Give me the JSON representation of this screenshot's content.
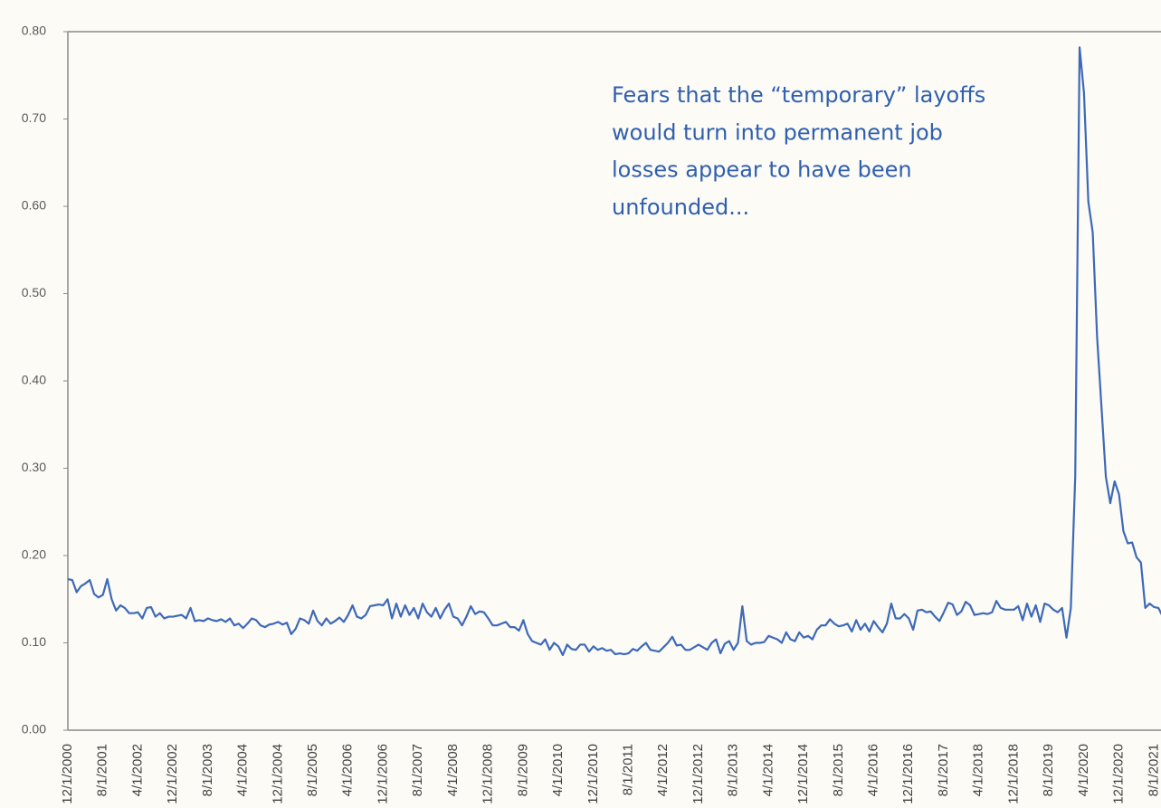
{
  "chart_data": {
    "type": "line",
    "annotation": [
      "Fears that the “temporary” layoffs",
      "would turn into permanent job",
      "losses appear to have been",
      "unfounded..."
    ],
    "categories": [
      "12/1/2000",
      null,
      null,
      null,
      null,
      null,
      null,
      null,
      "8/1/2001",
      null,
      null,
      null,
      null,
      null,
      null,
      null,
      "4/1/2002",
      null,
      null,
      null,
      null,
      null,
      null,
      null,
      "12/1/2002",
      null,
      null,
      null,
      null,
      null,
      null,
      null,
      "8/1/2003",
      null,
      null,
      null,
      null,
      null,
      null,
      null,
      "4/1/2004",
      null,
      null,
      null,
      null,
      null,
      null,
      null,
      "12/1/2004",
      null,
      null,
      null,
      null,
      null,
      null,
      null,
      "8/1/2005",
      null,
      null,
      null,
      null,
      null,
      null,
      null,
      "4/1/2006",
      null,
      null,
      null,
      null,
      null,
      null,
      null,
      "12/1/2006",
      null,
      null,
      null,
      null,
      null,
      null,
      null,
      "8/1/2007",
      null,
      null,
      null,
      null,
      null,
      null,
      null,
      "4/1/2008",
      null,
      null,
      null,
      null,
      null,
      null,
      null,
      "12/1/2008",
      null,
      null,
      null,
      null,
      null,
      null,
      null,
      "8/1/2009",
      null,
      null,
      null,
      null,
      null,
      null,
      null,
      "4/1/2010",
      null,
      null,
      null,
      null,
      null,
      null,
      null,
      "12/1/2010",
      null,
      null,
      null,
      null,
      null,
      null,
      null,
      "8/1/2011",
      null,
      null,
      null,
      null,
      null,
      null,
      null,
      "4/1/2012",
      null,
      null,
      null,
      null,
      null,
      null,
      null,
      "12/1/2012",
      null,
      null,
      null,
      null,
      null,
      null,
      null,
      "8/1/2013",
      null,
      null,
      null,
      null,
      null,
      null,
      null,
      "4/1/2014",
      null,
      null,
      null,
      null,
      null,
      null,
      null,
      "12/1/2014",
      null,
      null,
      null,
      null,
      null,
      null,
      null,
      "8/1/2015",
      null,
      null,
      null,
      null,
      null,
      null,
      null,
      "4/1/2016",
      null,
      null,
      null,
      null,
      null,
      null,
      null,
      "12/1/2016",
      null,
      null,
      null,
      null,
      null,
      null,
      null,
      "8/1/2017",
      null,
      null,
      null,
      null,
      null,
      null,
      null,
      "4/1/2018",
      null,
      null,
      null,
      null,
      null,
      null,
      null,
      "12/1/2018",
      null,
      null,
      null,
      null,
      null,
      null,
      null,
      "8/1/2019",
      null,
      null,
      null,
      null,
      null,
      null,
      null,
      "4/1/2020",
      null,
      null,
      null,
      null,
      null,
      null,
      null,
      "12/1/2020",
      null,
      null,
      null,
      null,
      null,
      null,
      null,
      "8/1/2021",
      null,
      null
    ],
    "values": [
      0.173,
      0.172,
      0.158,
      0.165,
      0.168,
      0.172,
      0.156,
      0.152,
      0.155,
      0.173,
      0.15,
      0.137,
      0.143,
      0.14,
      0.134,
      0.134,
      0.135,
      0.128,
      0.14,
      0.141,
      0.13,
      0.134,
      0.128,
      0.13,
      0.13,
      0.131,
      0.132,
      0.128,
      0.14,
      0.125,
      0.126,
      0.125,
      0.128,
      0.126,
      0.125,
      0.127,
      0.124,
      0.128,
      0.12,
      0.122,
      0.117,
      0.122,
      0.128,
      0.126,
      0.12,
      0.118,
      0.121,
      0.122,
      0.124,
      0.121,
      0.123,
      0.11,
      0.116,
      0.128,
      0.126,
      0.122,
      0.137,
      0.125,
      0.12,
      0.128,
      0.122,
      0.125,
      0.129,
      0.124,
      0.132,
      0.143,
      0.13,
      0.128,
      0.132,
      0.142,
      0.143,
      0.144,
      0.143,
      0.15,
      0.128,
      0.145,
      0.13,
      0.143,
      0.132,
      0.14,
      0.128,
      0.145,
      0.135,
      0.13,
      0.14,
      0.128,
      0.138,
      0.145,
      0.13,
      0.128,
      0.12,
      0.13,
      0.142,
      0.133,
      0.136,
      0.135,
      0.128,
      0.12,
      0.12,
      0.122,
      0.124,
      0.118,
      0.118,
      0.114,
      0.126,
      0.11,
      0.102,
      0.1,
      0.098,
      0.104,
      0.092,
      0.1,
      0.096,
      0.086,
      0.098,
      0.093,
      0.092,
      0.098,
      0.098,
      0.09,
      0.096,
      0.092,
      0.094,
      0.091,
      0.092,
      0.087,
      0.088,
      0.087,
      0.088,
      0.093,
      0.091,
      0.096,
      0.1,
      0.092,
      0.091,
      0.09,
      0.095,
      0.1,
      0.107,
      0.097,
      0.098,
      0.092,
      0.092,
      0.095,
      0.098,
      0.095,
      0.092,
      0.1,
      0.104,
      0.088,
      0.099,
      0.102,
      0.092,
      0.1,
      0.142,
      0.102,
      0.098,
      0.1,
      0.1,
      0.101,
      0.108,
      0.106,
      0.104,
      0.1,
      0.112,
      0.104,
      0.102,
      0.112,
      0.106,
      0.108,
      0.104,
      0.115,
      0.12,
      0.12,
      0.127,
      0.122,
      0.119,
      0.12,
      0.122,
      0.113,
      0.126,
      0.115,
      0.122,
      0.113,
      0.125,
      0.118,
      0.112,
      0.122,
      0.145,
      0.128,
      0.128,
      0.133,
      0.128,
      0.115,
      0.137,
      0.138,
      0.135,
      0.136,
      0.13,
      0.125,
      0.135,
      0.146,
      0.144,
      0.132,
      0.136,
      0.147,
      0.143,
      0.132,
      0.133,
      0.134,
      0.133,
      0.135,
      0.148,
      0.14,
      0.138,
      0.138,
      0.138,
      0.142,
      0.126,
      0.145,
      0.13,
      0.143,
      0.124,
      0.145,
      0.143,
      0.138,
      0.135,
      0.14,
      0.106,
      0.14,
      0.29,
      0.782,
      0.73,
      0.605,
      0.57,
      0.45,
      0.37,
      0.29,
      0.26,
      0.285,
      0.27,
      0.228,
      0.214,
      0.215,
      0.198,
      0.192,
      0.14,
      0.145,
      0.141,
      0.14,
      0.13
    ],
    "color": "#3d69b8",
    "ylim": [
      0,
      0.8
    ],
    "yticks": [
      {
        "value": 0,
        "label": "0.00"
      },
      {
        "value": 0.1,
        "label": "0.10"
      },
      {
        "value": 0.2,
        "label": "0.20"
      },
      {
        "value": 0.3,
        "label": "0.30"
      },
      {
        "value": 0.4,
        "label": "0.40"
      },
      {
        "value": 0.5,
        "label": "0.50"
      },
      {
        "value": 0.6,
        "label": "0.60"
      },
      {
        "value": 0.7,
        "label": "0.70"
      },
      {
        "value": 0.8,
        "label": "0.80"
      }
    ],
    "grid": false
  }
}
